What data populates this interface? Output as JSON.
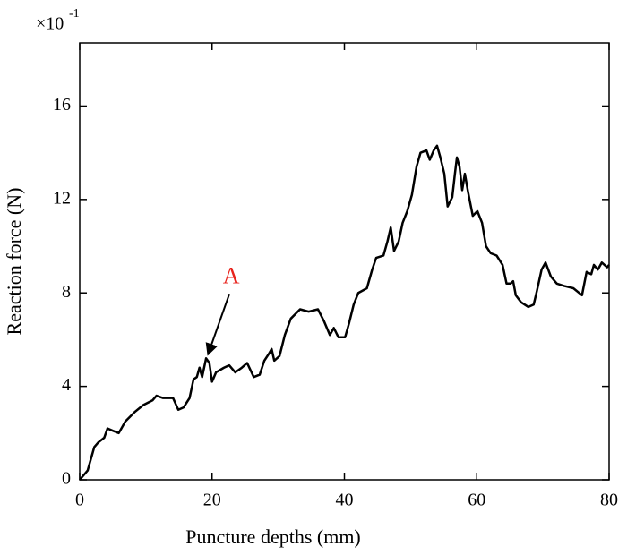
{
  "chart_data": {
    "type": "line",
    "x_label": "Puncture depths (mm)",
    "y_label": "Reaction force (N)",
    "y_multiplier": "×10",
    "y_multiplier_exponent": "-1",
    "xlim": [
      0,
      80
    ],
    "ylim": [
      0,
      18.7
    ],
    "xticks": [
      0,
      20,
      40,
      60,
      80
    ],
    "yticks": [
      0,
      4,
      8,
      12,
      16
    ],
    "grid": false,
    "series": [
      {
        "color": "#000000",
        "x": [
          0,
          1.2,
          2.2,
          2.8,
          3.7,
          4.2,
          5.0,
          5.9,
          6.9,
          8.3,
          9.6,
          11.0,
          11.6,
          12.6,
          14.1,
          14.9,
          15.7,
          16.6,
          17.2,
          17.7,
          18.1,
          18.5,
          19.1,
          19.6,
          20.0,
          20.6,
          21.8,
          22.6,
          23.5,
          24.5,
          25.3,
          26.3,
          27.2,
          27.9,
          28.6,
          29.0,
          29.4,
          30.2,
          31.0,
          31.9,
          33.3,
          34.6,
          36.0,
          36.9,
          37.8,
          38.4,
          39.1,
          40.1,
          40.7,
          41.4,
          42.1,
          43.4,
          44.2,
          44.8,
          45.9,
          46.5,
          47.0,
          47.5,
          48.2,
          48.8,
          49.5,
          50.2,
          50.9,
          51.5,
          52.4,
          52.9,
          53.5,
          54.0,
          54.5,
          55.1,
          55.6,
          56.3,
          56.7,
          57.0,
          57.4,
          57.8,
          58.2,
          58.7,
          59.4,
          60.1,
          60.8,
          61.4,
          62.1,
          63.0,
          63.9,
          64.5,
          65.1,
          65.5,
          65.9,
          66.7,
          67.8,
          68.6,
          69.1,
          69.8,
          70.4,
          71.2,
          72.1,
          73.2,
          74.6,
          75.9,
          76.6,
          77.3,
          77.7,
          78.3,
          78.9,
          79.7,
          80.0
        ],
        "values": [
          0,
          0.4,
          1.4,
          1.6,
          1.8,
          2.2,
          2.1,
          2.0,
          2.5,
          2.9,
          3.2,
          3.4,
          3.6,
          3.5,
          3.5,
          3.0,
          3.1,
          3.5,
          4.3,
          4.4,
          4.8,
          4.4,
          5.2,
          5.0,
          4.2,
          4.6,
          4.8,
          4.9,
          4.6,
          4.8,
          5.0,
          4.4,
          4.5,
          5.1,
          5.4,
          5.6,
          5.1,
          5.3,
          6.2,
          6.9,
          7.3,
          7.2,
          7.3,
          6.8,
          6.2,
          6.5,
          6.1,
          6.1,
          6.7,
          7.5,
          8.0,
          8.2,
          9.0,
          9.5,
          9.6,
          10.2,
          10.8,
          9.8,
          10.2,
          11.0,
          11.5,
          12.2,
          13.4,
          14.0,
          14.1,
          13.7,
          14.1,
          14.3,
          13.8,
          13.1,
          11.7,
          12.1,
          13.1,
          13.8,
          13.4,
          12.4,
          13.1,
          12.3,
          11.3,
          11.5,
          11.0,
          10.0,
          9.7,
          9.6,
          9.2,
          8.4,
          8.4,
          8.5,
          7.9,
          7.6,
          7.4,
          7.5,
          8.1,
          9.0,
          9.3,
          8.7,
          8.4,
          8.3,
          8.2,
          7.9,
          8.9,
          8.8,
          9.2,
          9.0,
          9.3,
          9.1,
          9.2
        ]
      }
    ],
    "annotations": [
      {
        "text": "A",
        "x": 19.1,
        "y": 5.2,
        "color": "#e8231c"
      }
    ]
  }
}
